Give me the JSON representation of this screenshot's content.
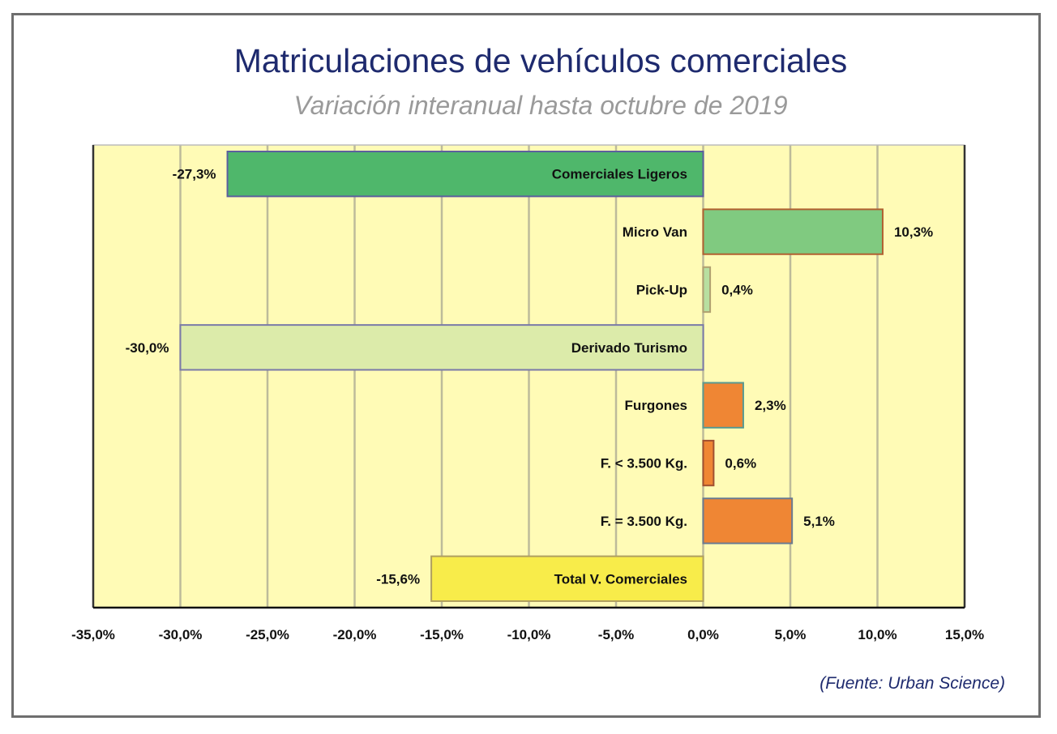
{
  "chart_data": {
    "type": "bar",
    "orientation": "horizontal",
    "title": "Matriculaciones de vehículos comerciales",
    "subtitle": "Variación interanual hasta octubre de 2019",
    "source": "(Fuente: Urban Science)",
    "categories": [
      "Comerciales Ligeros",
      "Micro Van",
      "Pick-Up",
      "Derivado Turismo",
      "Furgones",
      "F. < 3.500 Kg.",
      "F. = 3.500 Kg.",
      "Total V. Comerciales"
    ],
    "values": [
      -27.3,
      10.3,
      0.4,
      -30.0,
      2.3,
      0.6,
      5.1,
      -15.6
    ],
    "data_labels": [
      "-27,3%",
      "10,3%",
      "0,4%",
      "-30,0%",
      "2,3%",
      "0,6%",
      "5,1%",
      "-15,6%"
    ],
    "colors": [
      "#4fb76b",
      "#80ca80",
      "#b8dfa0",
      "#dcebaa",
      "#ef8634",
      "#ef8634",
      "#ef8634",
      "#f8ec4a"
    ],
    "border_colors": [
      "#5c5f9e",
      "#b06030",
      "#b0a070",
      "#7a7aa8",
      "#5a9a90",
      "#a05030",
      "#6a7a90",
      "#b0a060"
    ],
    "xlim": [
      -35,
      15
    ],
    "xticks": [
      -35,
      -30,
      -25,
      -20,
      -15,
      -10,
      -5,
      0,
      5,
      10,
      15
    ],
    "xtick_labels": [
      "-35,0%",
      "-30,0%",
      "-25,0%",
      "-20,0%",
      "-15,0%",
      "-10,0%",
      "-5,0%",
      "0,0%",
      "5,0%",
      "10,0%",
      "15,0%"
    ],
    "grid": "vertical",
    "plot_background": "#fffbb6",
    "xlabel": "",
    "ylabel": ""
  }
}
